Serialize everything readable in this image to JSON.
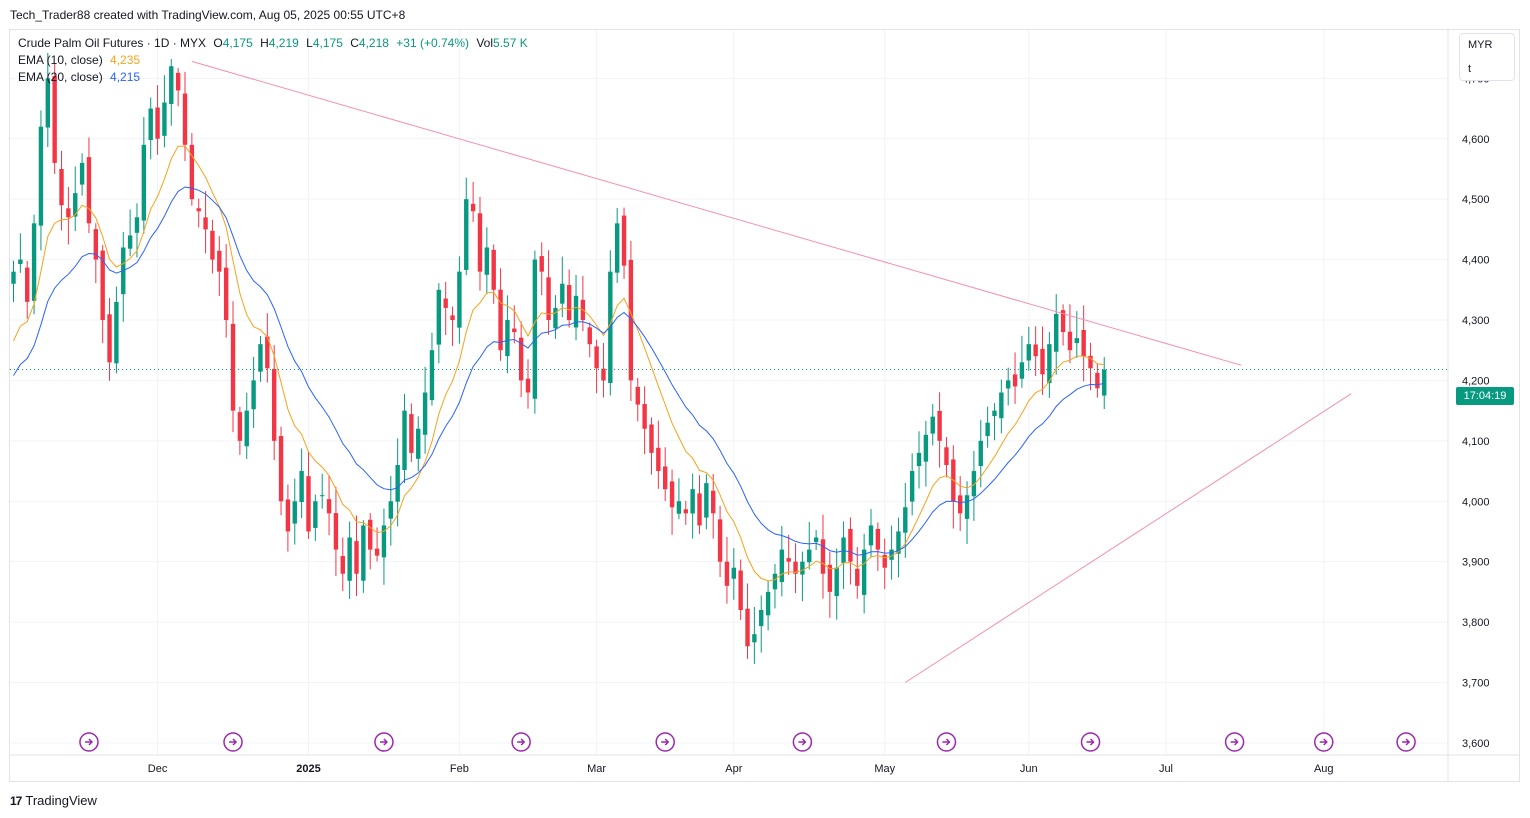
{
  "header": {
    "attribution": "Tech_Trader88 created with TradingView.com, Aug 05, 2025 00:55 UTC+8"
  },
  "legend": {
    "symbol": "Crude Palm Oil Futures · 1D · MYX",
    "o_label": "O",
    "o_value": "4,175",
    "h_label": "H",
    "h_value": "4,219",
    "l_label": "L",
    "l_value": "4,175",
    "c_label": "C",
    "c_value": "4,218",
    "change": "+31 (+0.74%)",
    "vol_label": "Vol",
    "vol_value": "5.57 K",
    "ema10_label": "EMA (10, close)",
    "ema10_value": "4,235",
    "ema20_label": "EMA (20, close)",
    "ema20_value": "4,215"
  },
  "currency": {
    "code": "MYR",
    "unit": "t"
  },
  "price_tag": "17:04:19",
  "brand": "TradingView",
  "colors": {
    "up": "#089981",
    "down": "#f23645",
    "ema10": "#f7a21b",
    "ema20": "#2962ff",
    "trendline": "#f48fb1",
    "grid": "#f0f3fa"
  },
  "chart_data": {
    "type": "candlestick",
    "ylim": [
      3580,
      4780
    ],
    "y_ticks": [
      {
        "v": 3600,
        "label": "3,600"
      },
      {
        "v": 3700,
        "label": "3,700"
      },
      {
        "v": 3800,
        "label": "3,800"
      },
      {
        "v": 3900,
        "label": "3,900"
      },
      {
        "v": 4000,
        "label": "4,000"
      },
      {
        "v": 4100,
        "label": "4,100"
      },
      {
        "v": 4200,
        "label": "4,200"
      },
      {
        "v": 4300,
        "label": "4,300"
      },
      {
        "v": 4400,
        "label": "4,400"
      },
      {
        "v": 4500,
        "label": "4,500"
      },
      {
        "v": 4600,
        "label": "4,600"
      },
      {
        "v": 4700,
        "label": "4,700"
      }
    ],
    "x_ticks": [
      {
        "i": 21,
        "label": "Dec"
      },
      {
        "i": 43,
        "label": "2025"
      },
      {
        "i": 65,
        "label": "Feb"
      },
      {
        "i": 85,
        "label": "Mar"
      },
      {
        "i": 105,
        "label": "Apr"
      },
      {
        "i": 127,
        "label": "May"
      },
      {
        "i": 148,
        "label": "Jun"
      },
      {
        "i": 168,
        "label": "Jul"
      },
      {
        "i": 191,
        "label": "Aug"
      }
    ],
    "event_markers": [
      11,
      32,
      54,
      74,
      95,
      115,
      136,
      157,
      178,
      191,
      203
    ],
    "current_price_line": 4218,
    "trendlines": [
      {
        "from": [
          26,
          4728
        ],
        "to": [
          179,
          4225
        ]
      },
      {
        "from": [
          130,
          3700
        ],
        "to": [
          195,
          4178
        ]
      }
    ],
    "closes": [
      4380,
      4400,
      4330,
      4460,
      4620,
      4700,
      4560,
      4490,
      4470,
      4510,
      4560,
      4460,
      4400,
      4300,
      4230,
      4330,
      4420,
      4440,
      4470,
      4590,
      4650,
      4600,
      4660,
      4720,
      4680,
      4590,
      4500,
      4480,
      4450,
      4400,
      4380,
      4300,
      4150,
      4100,
      4150,
      4200,
      4260,
      4220,
      4100,
      4000,
      3950,
      4000,
      4050,
      3950,
      4000,
      4010,
      3980,
      3920,
      3880,
      3940,
      3880,
      3960,
      3920,
      3910,
      3960,
      4000,
      4060,
      4150,
      4080,
      4120,
      4180,
      4250,
      4350,
      4320,
      4300,
      4380,
      4500,
      4480,
      4380,
      4420,
      4350,
      4250,
      4300,
      4280,
      4200,
      4180,
      4400,
      4380,
      4300,
      4320,
      4360,
      4300,
      4340,
      4300,
      4260,
      4220,
      4200,
      4380,
      4460,
      4390,
      4200,
      4160,
      4120,
      4080,
      4050,
      4020,
      3990,
      4000,
      3980,
      4020,
      3960,
      4030,
      3980,
      3900,
      3860,
      3890,
      3820,
      3760,
      3780,
      3820,
      3850,
      3880,
      3920,
      3900,
      3880,
      3900,
      3920,
      3940,
      3880,
      3850,
      3890,
      3940,
      3900,
      3860,
      3920,
      3960,
      3920,
      3890,
      3920,
      3950,
      3990,
      4050,
      4080,
      4110,
      4140,
      4100,
      4060,
      4000,
      3980,
      4010,
      4050,
      4100,
      4130,
      4150,
      4180,
      4200,
      4190,
      4230,
      4260,
      4240,
      4210,
      4260,
      4310,
      4280,
      4250,
      4270,
      4240,
      4220,
      4187,
      4218
    ]
  }
}
